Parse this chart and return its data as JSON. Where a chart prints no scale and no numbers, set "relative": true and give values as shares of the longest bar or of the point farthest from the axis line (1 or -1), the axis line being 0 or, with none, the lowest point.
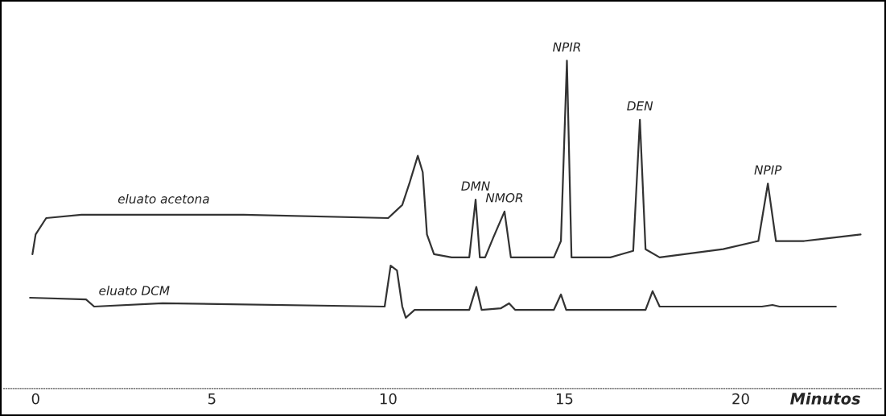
{
  "chart_data": {
    "type": "line",
    "relative": true,
    "xlabel": "Minutos",
    "xlim": [
      -0.91,
      24.02
    ],
    "xticks": [
      0,
      5,
      10,
      15,
      20
    ],
    "grid": false,
    "marker": "none",
    "line_style": "solid",
    "series": [
      {
        "name": "eluato acetona",
        "color": "#333333",
        "x": [
          -0.09,
          0,
          0.3,
          1.3,
          2.2,
          5.9,
          10,
          10.2,
          10.4,
          10.6,
          10.84,
          10.98,
          11.1,
          11.3,
          11.8,
          12.3,
          12.48,
          12.6,
          12.75,
          12.98,
          13.3,
          13.48,
          14.7,
          14.9,
          15.07,
          15.2,
          16.3,
          16.95,
          17.14,
          17.3,
          17.7,
          19.5,
          20.5,
          20.77,
          21.0,
          21.8,
          23.4
        ],
        "values": [
          0.41,
          0.47,
          0.52,
          0.53,
          0.53,
          0.53,
          0.52,
          0.54,
          0.56,
          0.625,
          0.71,
          0.66,
          0.47,
          0.41,
          0.4,
          0.4,
          0.576,
          0.4,
          0.4,
          0.46,
          0.54,
          0.4,
          0.4,
          0.45,
          1.0,
          0.4,
          0.4,
          0.42,
          0.82,
          0.425,
          0.4,
          0.425,
          0.45,
          0.625,
          0.45,
          0.45,
          0.47
        ]
      },
      {
        "name": "eluato DCM",
        "color": "#333333",
        "x": [
          -0.16,
          1.43,
          1.66,
          3.6,
          9.9,
          10.07,
          10.25,
          10.4,
          10.5,
          10.75,
          12.3,
          12.5,
          12.65,
          13.2,
          13.43,
          13.6,
          14.7,
          14.9,
          15.05,
          17.3,
          17.5,
          17.7,
          20.6,
          20.9,
          21.1,
          22.7
        ],
        "values": [
          0.277,
          0.272,
          0.25,
          0.26,
          0.25,
          0.375,
          0.36,
          0.25,
          0.216,
          0.24,
          0.24,
          0.31,
          0.24,
          0.245,
          0.26,
          0.24,
          0.24,
          0.287,
          0.24,
          0.24,
          0.297,
          0.25,
          0.25,
          0.255,
          0.25,
          0.25
        ]
      }
    ],
    "annotations": [
      {
        "text": "DMN",
        "x": 12.48,
        "y": 0.576
      },
      {
        "text": "NMOR",
        "x": 13.3,
        "y": 0.54
      },
      {
        "text": "NPIR",
        "x": 15.07,
        "y": 1.0
      },
      {
        "text": "DEN",
        "x": 17.14,
        "y": 0.82
      },
      {
        "text": "NPIP",
        "x": 20.77,
        "y": 0.625
      }
    ]
  }
}
